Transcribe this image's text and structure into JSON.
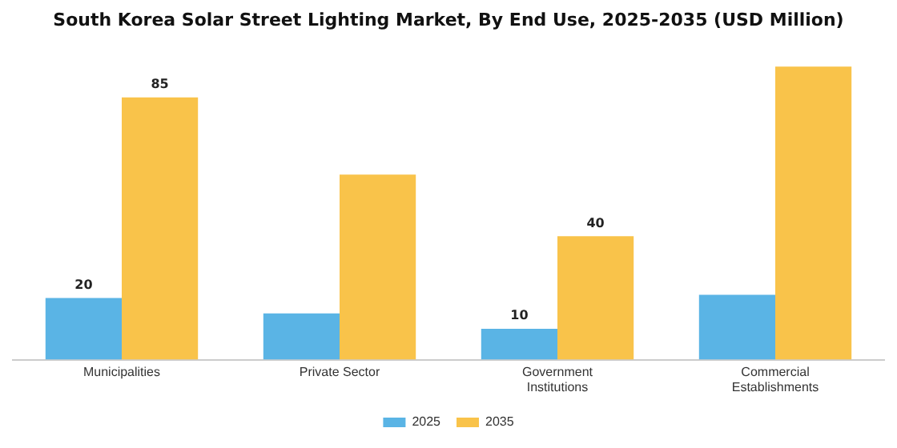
{
  "chart_data": {
    "type": "bar",
    "title": "South Korea Solar Street Lighting Market, By End Use, 2025-2035 (USD Million)",
    "categories": [
      "Municipalities",
      "Private Sector",
      "Government Institutions",
      "Commercial Establishments"
    ],
    "series": [
      {
        "name": "2025",
        "color": "#5ab4e5",
        "values": [
          20,
          15,
          10,
          21
        ],
        "value_labels": [
          "20",
          null,
          "10",
          null
        ]
      },
      {
        "name": "2035",
        "color": "#f9c34a",
        "values": [
          85,
          60,
          40,
          95
        ],
        "value_labels": [
          "85",
          null,
          "40",
          null
        ]
      }
    ],
    "legend": "bottom",
    "grid": false
  }
}
